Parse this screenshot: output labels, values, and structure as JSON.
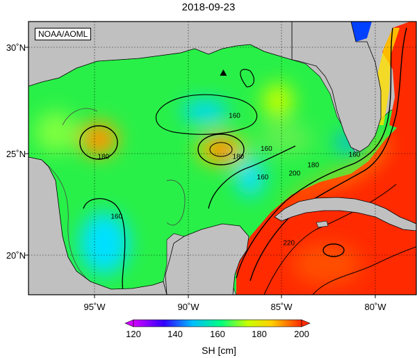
{
  "title": "2018-09-23",
  "credit": "NOAA/AOML",
  "axes": {
    "lat_labels": [
      "30˚N",
      "25˚N",
      "20˚N"
    ],
    "lon_labels": [
      "95˚W",
      "90˚W",
      "85˚W",
      "80˚W"
    ]
  },
  "map": {
    "lon_range": [
      -98.5,
      -77.8
    ],
    "lat_range": [
      18.0,
      31.3
    ],
    "land_color": "#c0c0c0",
    "marker": {
      "type": "triangle",
      "lon": -88.1,
      "lat": 28.8
    },
    "contour_labels": [
      {
        "text": "160",
        "lon": -87.5,
        "lat": 26.7
      },
      {
        "text": "180",
        "lon": -94.5,
        "lat": 24.7
      },
      {
        "text": "180",
        "lon": -87.3,
        "lat": 24.7
      },
      {
        "text": "160",
        "lon": -85.8,
        "lat": 25.1
      },
      {
        "text": "160",
        "lon": -86.0,
        "lat": 23.7
      },
      {
        "text": "160",
        "lon": -93.8,
        "lat": 21.8
      },
      {
        "text": "180",
        "lon": -83.3,
        "lat": 24.3
      },
      {
        "text": "160",
        "lon": -81.1,
        "lat": 24.8
      },
      {
        "text": "200",
        "lon": -84.3,
        "lat": 23.9
      },
      {
        "text": "220",
        "lon": -84.6,
        "lat": 20.5
      }
    ]
  },
  "colorbar": {
    "label": "SH [cm]",
    "ticks": [
      "120",
      "140",
      "160",
      "180",
      "200"
    ],
    "range": [
      120,
      200
    ],
    "colors": [
      "#d200ff",
      "#3200ff",
      "#00bcff",
      "#00ff80",
      "#c8ff00",
      "#ffd000",
      "#ff2a00"
    ]
  }
}
